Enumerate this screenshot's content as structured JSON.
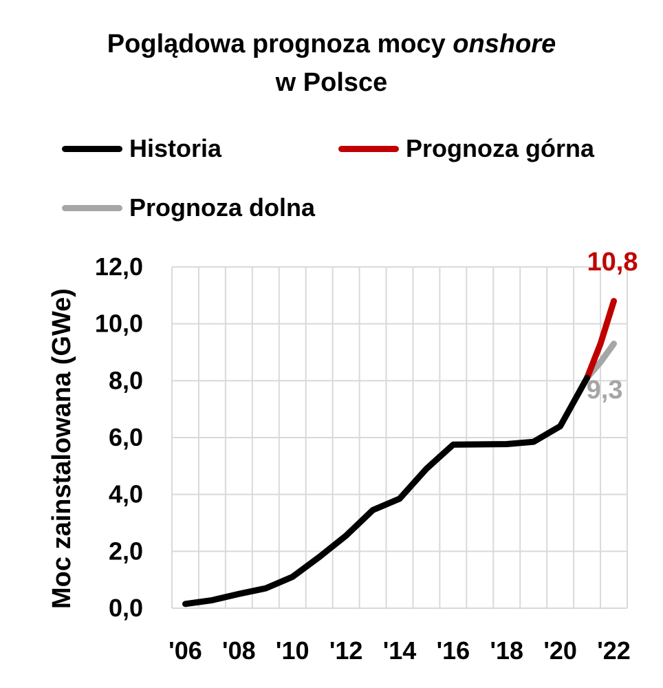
{
  "chart_data": {
    "type": "line",
    "title_line1_prefix": "Poglądowa prognoza mocy ",
    "title_line1_italic": "onshore",
    "title_line2": "w Polsce",
    "ylabel": "Moc zainstalowana (GWe)",
    "xlabel": "",
    "ylim": [
      0,
      12
    ],
    "yticks": [
      "0,0",
      "2,0",
      "4,0",
      "6,0",
      "8,0",
      "10,0",
      "12,0"
    ],
    "xticks": [
      "'06",
      "'08",
      "'10",
      "'12",
      "'14",
      "'16",
      "'18",
      "'20",
      "'22"
    ],
    "grid": true,
    "legend_position": "top",
    "series": [
      {
        "name": "Historia",
        "color": "#000000",
        "x": [
          2006,
          2007,
          2008,
          2009,
          2010,
          2011,
          2012,
          2013,
          2014,
          2015,
          2016,
          2017,
          2018,
          2019,
          2020,
          2021
        ],
        "values": [
          0.15,
          0.28,
          0.5,
          0.7,
          1.1,
          1.8,
          2.55,
          3.45,
          3.85,
          4.9,
          5.75,
          5.76,
          5.77,
          5.85,
          6.4,
          8.1
        ]
      },
      {
        "name": "Prognoza górna",
        "color": "#C00000",
        "x": [
          2021,
          2021.5,
          2022
        ],
        "values": [
          8.1,
          9.3,
          10.8
        ],
        "end_label": "10,8"
      },
      {
        "name": "Prognoza dolna",
        "color": "#A6A6A6",
        "x": [
          2021,
          2021.5,
          2022
        ],
        "values": [
          8.1,
          8.65,
          9.3
        ],
        "end_label": "9,3"
      }
    ]
  }
}
